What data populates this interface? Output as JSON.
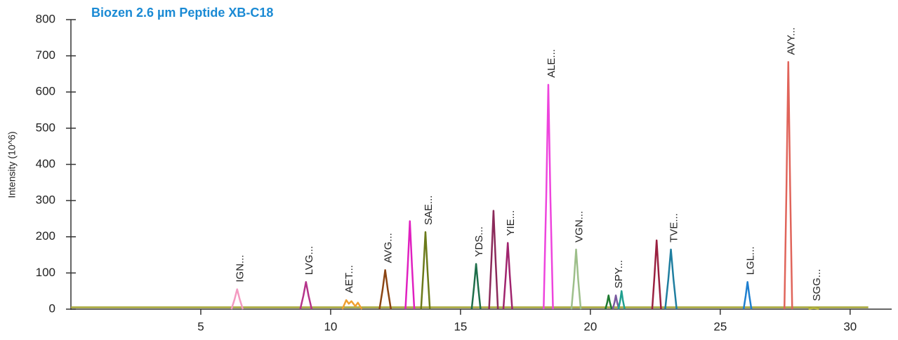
{
  "chart_data": {
    "type": "line",
    "title": "Biozen 2.6 µm Peptide XB-C18",
    "y_label": "Intensity (10^6)",
    "xlim": [
      0,
      31.6
    ],
    "xticks": [
      5,
      10,
      15,
      20,
      25,
      30
    ],
    "ylim": [
      0,
      800
    ],
    "yticks": [
      0,
      100,
      200,
      300,
      400,
      500,
      600,
      700,
      800
    ],
    "series": [
      {
        "color": "#a3a332",
        "x": [
          0,
          30.7
        ],
        "values": [
          5,
          5
        ]
      },
      {
        "name": "IGN...",
        "color": "#f49ac1",
        "x": [
          6.18,
          6.3,
          6.4,
          6.5,
          6.62
        ],
        "values": [
          0,
          27,
          55,
          27,
          0
        ]
      },
      {
        "name": "LVG...",
        "color": "#b5338a",
        "x": [
          8.83,
          8.95,
          9.05,
          9.15,
          9.27
        ],
        "values": [
          0,
          37,
          75,
          37,
          0
        ]
      },
      {
        "name": "AET...",
        "color": "#f0a030",
        "x": [
          10.45,
          10.6,
          10.7,
          10.8,
          10.95,
          11.05,
          11.2
        ],
        "values": [
          0,
          25,
          15,
          22,
          8,
          18,
          0
        ]
      },
      {
        "name": "AVG...",
        "color": "#8b4513",
        "x": [
          11.88,
          12.0,
          12.1,
          12.2,
          12.32
        ],
        "values": [
          0,
          54,
          108,
          54,
          0
        ]
      },
      {
        "color": "#e020c0",
        "x": [
          12.88,
          12.97,
          13.05,
          13.13,
          13.22
        ],
        "values": [
          0,
          121,
          243,
          121,
          0
        ]
      },
      {
        "name": "SAE...",
        "color": "#6b7a1a",
        "x": [
          13.48,
          13.57,
          13.65,
          13.73,
          13.82
        ],
        "values": [
          0,
          106,
          213,
          106,
          0
        ]
      },
      {
        "name": "YDS...",
        "color": "#1e6e4a",
        "x": [
          15.43,
          15.52,
          15.6,
          15.68,
          15.77
        ],
        "values": [
          0,
          62,
          125,
          62,
          0
        ]
      },
      {
        "color": "#8b2a5a",
        "x": [
          16.1,
          16.19,
          16.27,
          16.35,
          16.44
        ],
        "values": [
          0,
          136,
          272,
          136,
          0
        ]
      },
      {
        "name": "YIE...",
        "color": "#a0246e",
        "x": [
          16.65,
          16.74,
          16.82,
          16.9,
          16.99
        ],
        "values": [
          0,
          91,
          183,
          91,
          0
        ]
      },
      {
        "name": "ALE...",
        "color": "#ee44dd",
        "x": [
          18.2,
          18.3,
          18.38,
          18.46,
          18.56
        ],
        "values": [
          0,
          310,
          620,
          310,
          0
        ]
      },
      {
        "name": "VGN...",
        "color": "#9dbf8a",
        "x": [
          19.27,
          19.37,
          19.45,
          19.53,
          19.63
        ],
        "values": [
          0,
          82,
          165,
          82,
          0
        ]
      },
      {
        "color": "#1e7a30",
        "x": [
          20.58,
          20.65,
          20.7,
          20.75,
          20.82
        ],
        "values": [
          0,
          19,
          38,
          19,
          0
        ]
      },
      {
        "name": "SPY...",
        "color": "#7a5aa0",
        "x": [
          20.86,
          20.93,
          20.98,
          21.03,
          21.1
        ],
        "values": [
          0,
          19,
          38,
          19,
          0
        ]
      },
      {
        "color": "#20a090",
        "x": [
          21.08,
          21.15,
          21.2,
          21.25,
          21.32
        ],
        "values": [
          0,
          25,
          50,
          25,
          0
        ]
      },
      {
        "color": "#9a2040",
        "x": [
          22.38,
          22.47,
          22.55,
          22.63,
          22.72
        ],
        "values": [
          0,
          95,
          190,
          95,
          0
        ]
      },
      {
        "name": "TVE...",
        "color": "#1f7ea0",
        "x": [
          22.88,
          23.0,
          23.1,
          23.2,
          23.32
        ],
        "values": [
          0,
          82,
          165,
          82,
          0
        ]
      },
      {
        "name": "LGL...",
        "color": "#1e7fd0",
        "x": [
          25.9,
          25.98,
          26.05,
          26.12,
          26.2
        ],
        "values": [
          0,
          37,
          75,
          37,
          0
        ]
      },
      {
        "name": "AVY...",
        "color": "#e0645a",
        "x": [
          27.47,
          27.55,
          27.62,
          27.69,
          27.77
        ],
        "values": [
          0,
          341,
          683,
          341,
          0
        ]
      },
      {
        "name": "SGG...",
        "color": "#b8b840",
        "x": [
          28.4,
          28.5,
          28.6,
          28.7,
          28.8
        ],
        "values": [
          0,
          2,
          3,
          2,
          0
        ]
      }
    ]
  }
}
